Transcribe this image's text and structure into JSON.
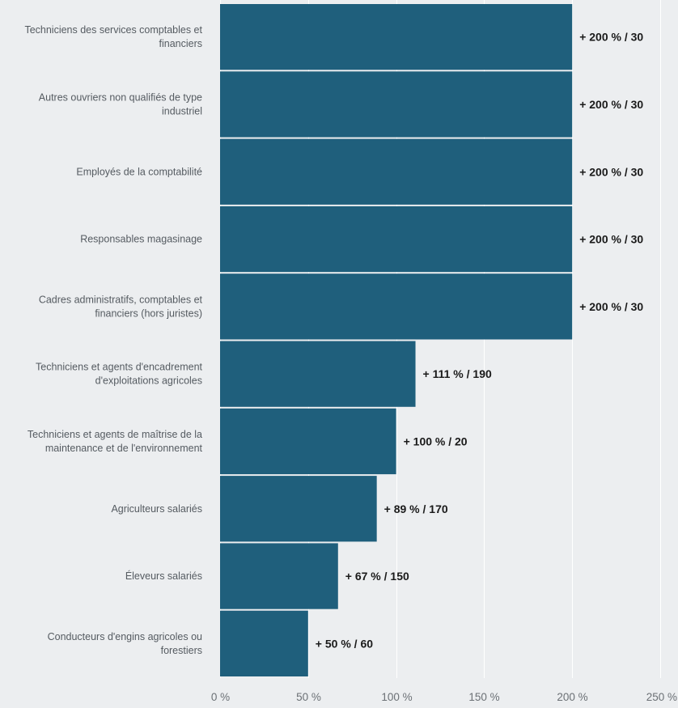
{
  "chart_data": {
    "type": "bar",
    "orientation": "horizontal",
    "bar_color": "#1f5f7c",
    "background_color": "#eceef0",
    "grid": true,
    "xlim": [
      0,
      250
    ],
    "x_ticks": [
      0,
      50,
      100,
      150,
      200,
      250
    ],
    "x_tick_labels": [
      "0 %",
      "50 %",
      "100 %",
      "150 %",
      "200 %",
      "250 %"
    ],
    "categories": [
      [
        "Techniciens des services comptables et",
        "financiers"
      ],
      [
        "Autres ouvriers non qualifiés de type",
        "industriel"
      ],
      [
        "Employés de la comptabilité"
      ],
      [
        "Responsables magasinage"
      ],
      [
        "Cadres administratifs, comptables et",
        "financiers (hors juristes)"
      ],
      [
        "Techniciens et agents d'encadrement",
        "d'exploitations agricoles"
      ],
      [
        "Techniciens et agents de maîtrise de la",
        "maintenance et de l'environnement"
      ],
      [
        "Agriculteurs salariés"
      ],
      [
        "Éleveurs salariés"
      ],
      [
        "Conducteurs d'engins agricoles ou",
        "forestiers"
      ]
    ],
    "values": [
      200,
      200,
      200,
      200,
      200,
      111,
      100,
      89,
      67,
      50
    ],
    "data_labels": [
      "+ 200 % / 30",
      "+ 200 % / 30",
      "+ 200 % / 30",
      "+ 200 % / 30",
      "+ 200 % / 30",
      "+ 111 % / 190",
      "+ 100 % / 20",
      "+ 89 % / 170",
      "+ 67 % / 150",
      "+ 50 % / 60"
    ]
  }
}
